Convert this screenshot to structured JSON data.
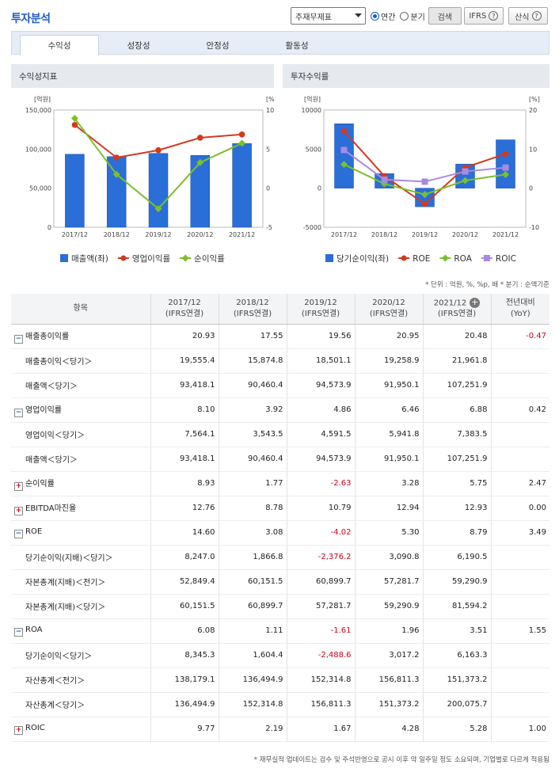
{
  "header": {
    "title": "투자분석",
    "statement_select": "주재무제표",
    "radio_annual": "연간",
    "radio_quarter": "분기",
    "search_label": "검색",
    "ifrs_label": "IFRS",
    "formula_label": "산식",
    "help_glyph": "?"
  },
  "tabs": [
    {
      "label": "수익성"
    },
    {
      "label": "성장성"
    },
    {
      "label": "안정성"
    },
    {
      "label": "활동성"
    }
  ],
  "charts": {
    "left_title": "수익성지표",
    "right_title": "투자수익률"
  },
  "chart_data": [
    {
      "type": "bar",
      "title": "수익성지표",
      "categories": [
        "2017/12",
        "2018/12",
        "2019/12",
        "2020/12",
        "2021/12"
      ],
      "y_left_unit": "[억원]",
      "y_right_unit": "[%]",
      "y_left_ticks": [
        "150,000",
        "100,000",
        "50,000",
        "0"
      ],
      "y_right_ticks": [
        "10",
        "5",
        "0",
        "-5"
      ],
      "ylim_left": [
        0,
        150000
      ],
      "ylim_right": [
        -5,
        10
      ],
      "series": [
        {
          "name": "매출액(좌)",
          "kind": "bar",
          "color": "#2a6ed8",
          "values": [
            93418.1,
            90460.4,
            94573.9,
            91950.1,
            107251.9
          ]
        },
        {
          "name": "영업이익률",
          "kind": "line",
          "color": "#d23a1e",
          "values": [
            8.1,
            3.92,
            4.86,
            6.46,
            6.88
          ]
        },
        {
          "name": "순이익률",
          "kind": "line",
          "color": "#7cbf2a",
          "values": [
            8.93,
            1.77,
            -2.63,
            3.28,
            5.75
          ]
        }
      ]
    },
    {
      "type": "bar",
      "title": "투자수익률",
      "categories": [
        "2017/12",
        "2018/12",
        "2019/12",
        "2020/12",
        "2021/12"
      ],
      "y_left_unit": "[억원]",
      "y_right_unit": "[%]",
      "y_left_ticks": [
        "10000",
        "5000",
        "0",
        "-5000"
      ],
      "y_right_ticks": [
        "20",
        "10",
        "0",
        "-10"
      ],
      "ylim_left": [
        -5000,
        10000
      ],
      "ylim_right": [
        -10,
        20
      ],
      "series": [
        {
          "name": "당기순이익(좌)",
          "kind": "bar",
          "color": "#2a6ed8",
          "values": [
            8247.0,
            1866.8,
            -2376.2,
            3090.8,
            6190.5
          ]
        },
        {
          "name": "ROE",
          "kind": "line",
          "color": "#d23a1e",
          "values": [
            14.6,
            3.08,
            -4.02,
            5.3,
            8.79
          ]
        },
        {
          "name": "ROA",
          "kind": "line",
          "color": "#7cbf2a",
          "values": [
            6.08,
            1.11,
            -1.61,
            1.96,
            3.51
          ]
        },
        {
          "name": "ROIC",
          "kind": "line",
          "color": "#a78be0",
          "values": [
            9.77,
            2.19,
            1.67,
            4.28,
            5.28
          ]
        }
      ]
    }
  ],
  "unit_note": "* 단위 : 억원, %, %p, 배   * 분기 : 순액기준",
  "table": {
    "headers": [
      {
        "l1": "항목",
        "l2": ""
      },
      {
        "l1": "2017/12",
        "l2": "(IFRS연결)"
      },
      {
        "l1": "2018/12",
        "l2": "(IFRS연결)"
      },
      {
        "l1": "2019/12",
        "l2": "(IFRS연결)"
      },
      {
        "l1": "2020/12",
        "l2": "(IFRS연결)"
      },
      {
        "l1": "2021/12",
        "l2": "(IFRS연결)"
      },
      {
        "l1": "전년대비",
        "l2": "(YoY)"
      }
    ],
    "expand_glyph": "+",
    "rows": [
      {
        "label": "매출총이익률",
        "toggle": "minus",
        "values": [
          "20.93",
          "17.55",
          "19.56",
          "20.95",
          "20.48"
        ],
        "yoy": "-0.47"
      },
      {
        "label": "매출총이익＜당기＞",
        "values": [
          "19,555.4",
          "15,874.8",
          "18,501.1",
          "19,258.9",
          "21,961.8"
        ],
        "yoy": ""
      },
      {
        "label": "매출액＜당기＞",
        "values": [
          "93,418.1",
          "90,460.4",
          "94,573.9",
          "91,950.1",
          "107,251.9"
        ],
        "yoy": ""
      },
      {
        "label": "영업이익률",
        "toggle": "minus",
        "values": [
          "8.10",
          "3.92",
          "4.86",
          "6.46",
          "6.88"
        ],
        "yoy": "0.42"
      },
      {
        "label": "영업이익＜당기＞",
        "values": [
          "7,564.1",
          "3,543.5",
          "4,591.5",
          "5,941.8",
          "7,383.5"
        ],
        "yoy": ""
      },
      {
        "label": "매출액＜당기＞",
        "values": [
          "93,418.1",
          "90,460.4",
          "94,573.9",
          "91,950.1",
          "107,251.9"
        ],
        "yoy": ""
      },
      {
        "label": "순이익률",
        "toggle": "plus",
        "values": [
          "8.93",
          "1.77",
          "-2.63",
          "3.28",
          "5.75"
        ],
        "yoy": "2.47"
      },
      {
        "label": "EBITDA마진율",
        "toggle": "plus",
        "values": [
          "12.76",
          "8.78",
          "10.79",
          "12.94",
          "12.93"
        ],
        "yoy": "0.00"
      },
      {
        "label": "ROE",
        "toggle": "minus",
        "values": [
          "14.60",
          "3.08",
          "-4.02",
          "5.30",
          "8.79"
        ],
        "yoy": "3.49"
      },
      {
        "label": "당기순이익(지배)＜당기＞",
        "values": [
          "8,247.0",
          "1,866.8",
          "-2,376.2",
          "3,090.8",
          "6,190.5"
        ],
        "yoy": ""
      },
      {
        "label": "자본총계(지배)＜전기＞",
        "values": [
          "52,849.4",
          "60,151.5",
          "60,899.7",
          "57,281.7",
          "59,290.9"
        ],
        "yoy": ""
      },
      {
        "label": "자본총계(지배)＜당기＞",
        "values": [
          "60,151.5",
          "60,899.7",
          "57,281.7",
          "59,290.9",
          "81,594.2"
        ],
        "yoy": ""
      },
      {
        "label": "ROA",
        "toggle": "minus",
        "values": [
          "6.08",
          "1.11",
          "-1.61",
          "1.96",
          "3.51"
        ],
        "yoy": "1.55"
      },
      {
        "label": "당기순이익＜당기＞",
        "values": [
          "8,345.3",
          "1,604.4",
          "-2,488.6",
          "3,017.2",
          "6,163.3"
        ],
        "yoy": ""
      },
      {
        "label": "자산총계＜전기＞",
        "values": [
          "138,179.1",
          "136,494.9",
          "152,314.8",
          "156,811.3",
          "151,373.2"
        ],
        "yoy": ""
      },
      {
        "label": "자산총계＜당기＞",
        "values": [
          "136,494.9",
          "152,314.8",
          "156,811.3",
          "151,373.2",
          "200,075.7"
        ],
        "yoy": ""
      },
      {
        "label": "ROIC",
        "toggle": "plus",
        "values": [
          "9.77",
          "2.19",
          "1.67",
          "4.28",
          "5.28"
        ],
        "yoy": "1.00"
      }
    ]
  },
  "footer_note": "* 재무실적 업데이트는 검수 및 주석반영으로 공시 이후 약 일주일 정도 소요되며, 기업별로 다르게 적용됨"
}
